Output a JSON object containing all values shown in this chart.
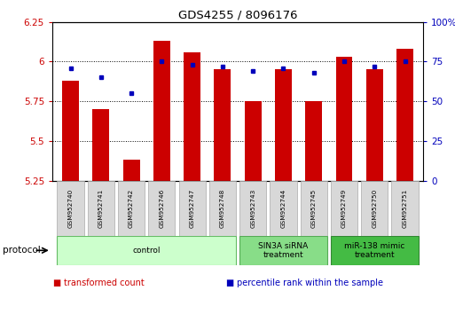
{
  "title": "GDS4255 / 8096176",
  "samples": [
    "GSM952740",
    "GSM952741",
    "GSM952742",
    "GSM952746",
    "GSM952747",
    "GSM952748",
    "GSM952743",
    "GSM952744",
    "GSM952745",
    "GSM952749",
    "GSM952750",
    "GSM952751"
  ],
  "bar_values": [
    5.88,
    5.7,
    5.38,
    6.13,
    6.06,
    5.95,
    5.75,
    5.95,
    5.75,
    6.03,
    5.95,
    6.08
  ],
  "dot_values": [
    71,
    65,
    55,
    75,
    73,
    72,
    69,
    71,
    68,
    75,
    72,
    75
  ],
  "bar_color": "#cc0000",
  "dot_color": "#0000bb",
  "ylim_min": 5.25,
  "ylim_max": 6.25,
  "y2lim_min": 0,
  "y2lim_max": 100,
  "yticks": [
    5.25,
    5.5,
    5.75,
    6.0,
    6.25
  ],
  "ytick_labels": [
    "5.25",
    "5.5",
    "5.75",
    "6",
    "6.25"
  ],
  "y2ticks": [
    0,
    25,
    50,
    75,
    100
  ],
  "y2tick_labels": [
    "0",
    "25",
    "50",
    "75",
    "100%"
  ],
  "groups": [
    {
      "label": "control",
      "start": 0,
      "end": 5,
      "color": "#ccffcc",
      "border": "#66bb66"
    },
    {
      "label": "SIN3A siRNA\ntreatment",
      "start": 6,
      "end": 8,
      "color": "#88dd88",
      "border": "#55aa55"
    },
    {
      "label": "miR-138 mimic\ntreatment",
      "start": 9,
      "end": 11,
      "color": "#44bb44",
      "border": "#338833"
    }
  ],
  "protocol_label": "protocol",
  "legend": [
    {
      "label": "transformed count",
      "color": "#cc0000"
    },
    {
      "label": "percentile rank within the sample",
      "color": "#0000bb"
    }
  ],
  "bar_width": 0.55,
  "tick_color_left": "#cc0000",
  "tick_color_right": "#0000bb"
}
